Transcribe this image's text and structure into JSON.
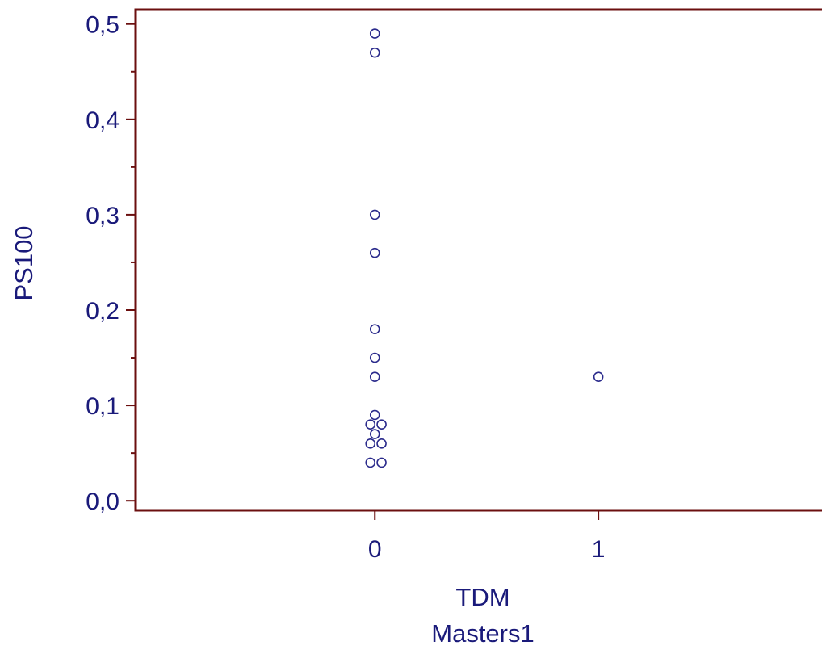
{
  "chart_data": {
    "type": "scatter",
    "xlabel_lines": [
      "TDM",
      "Masters1"
    ],
    "ylabel": "PS100",
    "xlim": [
      -1.07,
      2.0
    ],
    "ylim": [
      -0.01,
      0.515
    ],
    "x_ticks": [
      0,
      1
    ],
    "x_tick_labels": [
      "0",
      "1"
    ],
    "y_ticks": [
      0.0,
      0.1,
      0.2,
      0.3,
      0.4,
      0.5
    ],
    "y_tick_labels": [
      "0,0",
      "0,1",
      "0,2",
      "0,3",
      "0,4",
      "0,5"
    ],
    "y_minor_ticks": [
      0.05,
      0.15,
      0.25,
      0.35,
      0.45
    ],
    "grid": false,
    "legend": "none",
    "colors": {
      "frame": "#6b0f0f",
      "marker": "#2b2b8c",
      "text": "#1a1a7a"
    },
    "points": [
      {
        "x": 0,
        "y": 0.49
      },
      {
        "x": 0,
        "y": 0.47
      },
      {
        "x": 0,
        "y": 0.3
      },
      {
        "x": 0,
        "y": 0.26
      },
      {
        "x": 0,
        "y": 0.18
      },
      {
        "x": 0,
        "y": 0.15
      },
      {
        "x": 0,
        "y": 0.13
      },
      {
        "x": 0,
        "y": 0.09
      },
      {
        "x": -0.02,
        "y": 0.08
      },
      {
        "x": 0.03,
        "y": 0.08
      },
      {
        "x": 0,
        "y": 0.07
      },
      {
        "x": -0.02,
        "y": 0.06
      },
      {
        "x": 0.03,
        "y": 0.06
      },
      {
        "x": -0.02,
        "y": 0.04
      },
      {
        "x": 0.03,
        "y": 0.04
      },
      {
        "x": 1,
        "y": 0.13
      }
    ]
  }
}
